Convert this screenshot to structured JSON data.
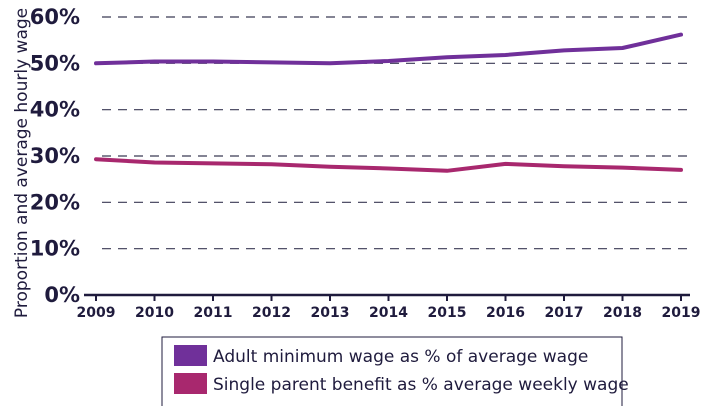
{
  "chart_data": {
    "type": "line",
    "x": [
      2009,
      2010,
      2011,
      2012,
      2013,
      2014,
      2015,
      2016,
      2017,
      2018,
      2019
    ],
    "tick_labels_x": [
      "2009",
      "2010",
      "2011",
      "2012",
      "2013",
      "2014",
      "2015",
      "2016",
      "2017",
      "2018",
      "2019"
    ],
    "tick_labels_y": [
      "0%",
      "10%",
      "20%",
      "30%",
      "40%",
      "50%",
      "60%"
    ],
    "ylim": [
      0,
      60
    ],
    "ylabel": "Proportion and average hourly wage",
    "xlabel": "",
    "grid": true,
    "legend_placement": "bottom",
    "series": [
      {
        "name": "Adult minimum wage as % of average wage",
        "color": "#70309a",
        "values": [
          50.0,
          50.4,
          50.4,
          50.2,
          50.0,
          50.5,
          51.3,
          51.8,
          52.8,
          53.3,
          56.2
        ]
      },
      {
        "name": "Single parent benefit as % average weekly wage",
        "color": "#a8286e",
        "values": [
          29.3,
          28.6,
          28.4,
          28.2,
          27.7,
          27.3,
          26.8,
          28.3,
          27.8,
          27.5,
          27.0
        ]
      }
    ]
  }
}
